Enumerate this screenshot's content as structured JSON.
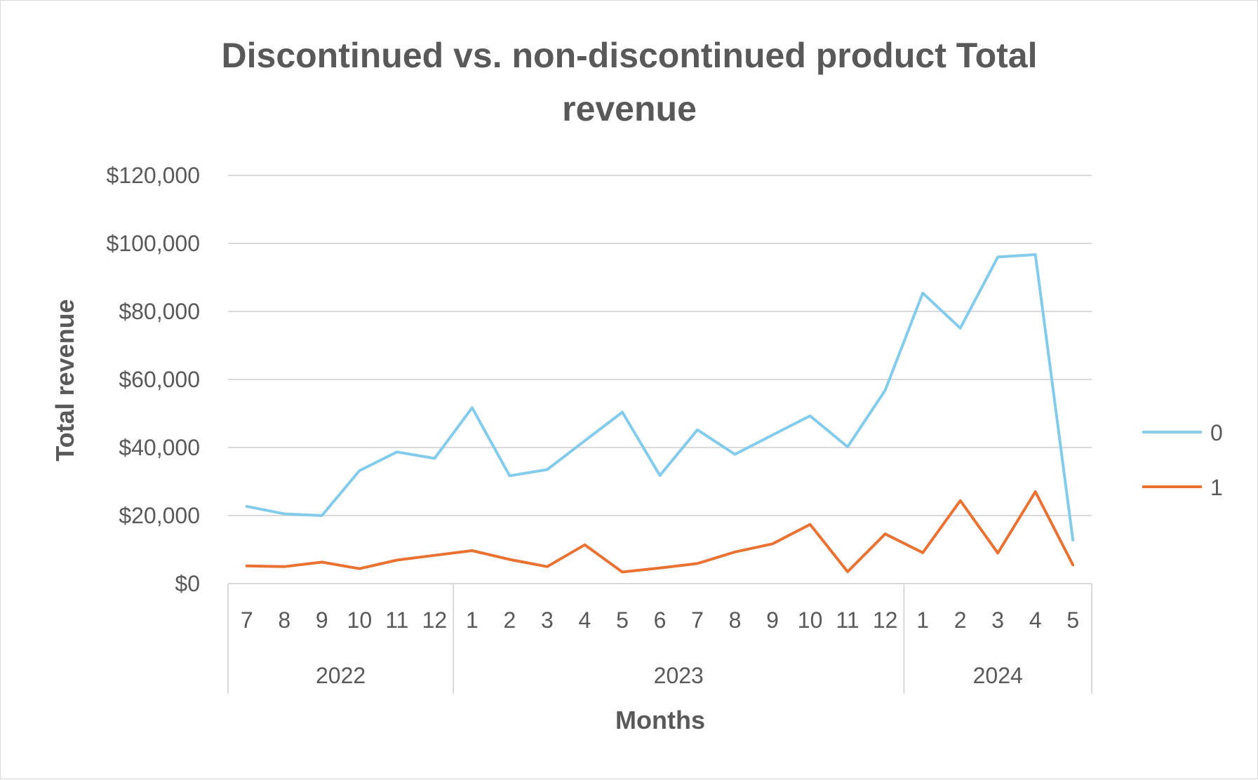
{
  "chart_data": {
    "type": "line",
    "title_line1": "Discontinued vs. non-discontinued product Total",
    "title_line2": "revenue",
    "xlabel": "Months",
    "ylabel": "Total revenue",
    "ylim": [
      0,
      120000
    ],
    "yticks": [
      "$0",
      "$20,000",
      "$40,000",
      "$60,000",
      "$80,000",
      "$100,000",
      "$120,000"
    ],
    "grid": true,
    "legend_position": "right",
    "months": [
      "7",
      "8",
      "9",
      "10",
      "11",
      "12",
      "1",
      "2",
      "3",
      "4",
      "5",
      "6",
      "7",
      "8",
      "9",
      "10",
      "11",
      "12",
      "1",
      "2",
      "3",
      "4",
      "5"
    ],
    "years": [
      {
        "label": "2022",
        "count": 6
      },
      {
        "label": "2023",
        "count": 12
      },
      {
        "label": "2024",
        "count": 5
      }
    ],
    "series": [
      {
        "name": "0",
        "color": "#83CBEB",
        "values": [
          22700,
          20500,
          20000,
          33200,
          38700,
          36800,
          51700,
          31700,
          33500,
          42000,
          50400,
          31800,
          45200,
          38000,
          43700,
          49300,
          40200,
          56800,
          85400,
          75100,
          96000,
          96700,
          12800
        ]
      },
      {
        "name": "1",
        "color": "#E97132",
        "values": [
          5200,
          5000,
          6300,
          4400,
          6900,
          8300,
          9700,
          7100,
          5000,
          11400,
          3400,
          4600,
          5900,
          9300,
          11700,
          17400,
          3500,
          14600,
          9100,
          24400,
          9000,
          27000,
          5500
        ]
      }
    ]
  }
}
